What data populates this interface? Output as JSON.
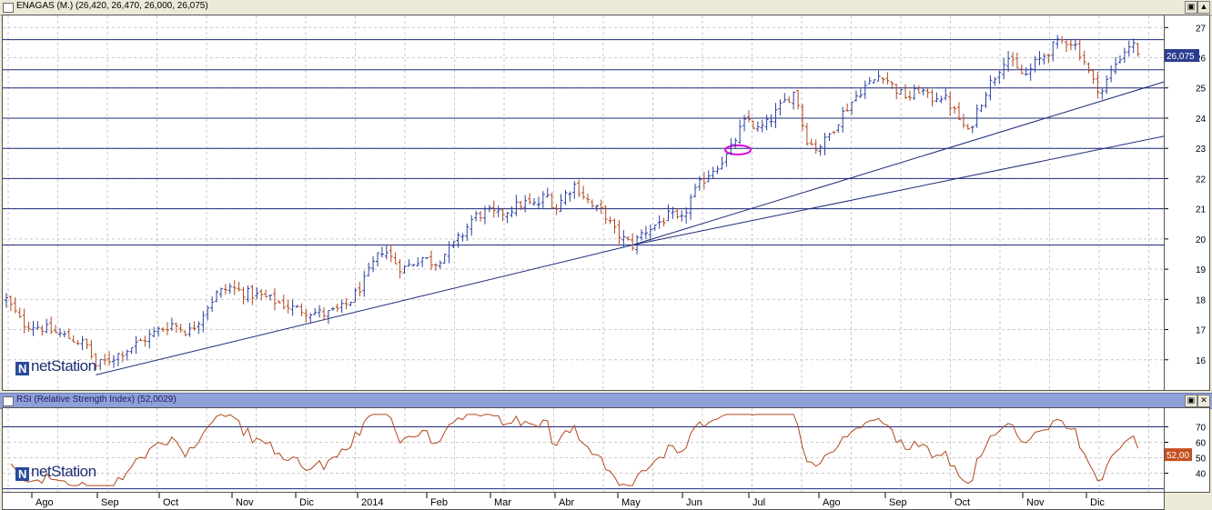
{
  "window": {
    "price_title": "ENAGAS (M.) (26,420, 26,470, 26,000, 26,075)",
    "rsi_title": "RSI (Relative Strength Index) (52,0029)",
    "restore_icon": "restore-icon",
    "maximize_icon": "maximize-icon"
  },
  "logo": {
    "text": "netStation"
  },
  "colors": {
    "bar_up": "#2b3f9e",
    "bar_down": "#b0461c",
    "rsi_line": "#b0461c",
    "trend_line": "#1c2a7a",
    "ellipse": "#e000e0",
    "last_price_badge": "#2b3d8f",
    "rsi_badge": "#c5501f"
  },
  "chart_data": [
    {
      "type": "ohlc",
      "series_name": "ENAGAS (M.)",
      "last_price_label": "26,075",
      "ylim": [
        15,
        27.4
      ],
      "yticks": [
        "16",
        "17",
        "18",
        "19",
        "20",
        "21",
        "22",
        "23",
        "24",
        "25",
        "26",
        "27"
      ],
      "horizontal_levels": [
        19.8,
        21,
        22,
        23,
        24,
        25,
        25.6,
        26.6
      ],
      "grid": true,
      "x_months": [
        "Ago",
        "Sep",
        "Oct",
        "Nov",
        "Dic",
        "2014",
        "Feb",
        "Mar",
        "Abr",
        "May",
        "Jun",
        "Jul",
        "Ago",
        "Sep",
        "Oct",
        "Nov",
        "Dic"
      ],
      "close_path_keypoints": [
        [
          0,
          18.0
        ],
        [
          5,
          17.2
        ],
        [
          10,
          17.1
        ],
        [
          18,
          16.8
        ],
        [
          25,
          16.5
        ],
        [
          28,
          15.8
        ],
        [
          32,
          16.0
        ],
        [
          37,
          16.3
        ],
        [
          42,
          16.6
        ],
        [
          48,
          17.0
        ],
        [
          52,
          17.2
        ],
        [
          57,
          16.9
        ],
        [
          60,
          17.3
        ],
        [
          63,
          17.8
        ],
        [
          66,
          18.2
        ],
        [
          70,
          18.4
        ],
        [
          75,
          18.2
        ],
        [
          80,
          18.1
        ],
        [
          85,
          17.9
        ],
        [
          90,
          17.7
        ],
        [
          95,
          17.6
        ],
        [
          100,
          17.5
        ],
        [
          105,
          17.7
        ],
        [
          108,
          18.0
        ],
        [
          112,
          18.6
        ],
        [
          115,
          19.2
        ],
        [
          118,
          19.7
        ],
        [
          121,
          19.3
        ],
        [
          124,
          19.0
        ],
        [
          127,
          19.2
        ],
        [
          130,
          19.4
        ],
        [
          134,
          19.2
        ],
        [
          137,
          19.5
        ],
        [
          140,
          19.8
        ],
        [
          143,
          20.2
        ],
        [
          146,
          20.7
        ],
        [
          150,
          20.9
        ],
        [
          154,
          20.8
        ],
        [
          158,
          21.0
        ],
        [
          162,
          21.2
        ],
        [
          166,
          21.1
        ],
        [
          169,
          21.5
        ],
        [
          172,
          21.0
        ],
        [
          175,
          21.5
        ],
        [
          178,
          21.8
        ],
        [
          181,
          21.4
        ],
        [
          184,
          21.0
        ],
        [
          187,
          20.9
        ],
        [
          190,
          20.3
        ],
        [
          193,
          20.0
        ],
        [
          196,
          19.8
        ],
        [
          199,
          20.2
        ],
        [
          202,
          20.4
        ],
        [
          205,
          20.6
        ],
        [
          208,
          20.8
        ],
        [
          211,
          20.5
        ],
        [
          214,
          21.3
        ],
        [
          217,
          21.8
        ],
        [
          220,
          22.2
        ],
        [
          223,
          22.5
        ],
        [
          226,
          22.8
        ],
        [
          229,
          23.5
        ],
        [
          232,
          24.0
        ],
        [
          235,
          23.6
        ],
        [
          238,
          23.8
        ],
        [
          241,
          24.2
        ],
        [
          244,
          24.6
        ],
        [
          247,
          24.9
        ],
        [
          250,
          23.4
        ],
        [
          253,
          23.0
        ],
        [
          256,
          23.2
        ],
        [
          259,
          23.7
        ],
        [
          262,
          24.2
        ],
        [
          265,
          24.6
        ],
        [
          268,
          25.0
        ],
        [
          271,
          25.2
        ],
        [
          274,
          25.5
        ],
        [
          277,
          25.1
        ],
        [
          280,
          24.8
        ],
        [
          283,
          24.7
        ],
        [
          286,
          25.0
        ],
        [
          289,
          24.6
        ],
        [
          292,
          24.8
        ],
        [
          295,
          24.5
        ],
        [
          298,
          24.0
        ],
        [
          301,
          23.5
        ],
        [
          304,
          24.3
        ],
        [
          307,
          25.0
        ],
        [
          310,
          25.5
        ],
        [
          313,
          26.1
        ],
        [
          316,
          25.6
        ],
        [
          319,
          25.4
        ],
        [
          322,
          25.8
        ],
        [
          325,
          26.1
        ],
        [
          328,
          26.4
        ],
        [
          331,
          26.6
        ],
        [
          334,
          26.5
        ],
        [
          337,
          26.0
        ],
        [
          340,
          25.2
        ],
        [
          343,
          24.9
        ],
        [
          346,
          25.6
        ],
        [
          349,
          26.1
        ],
        [
          352,
          26.5
        ],
        [
          355,
          26.1
        ]
      ]
    },
    {
      "type": "line",
      "series_name": "RSI (Relative Strength Index)",
      "last_value_label": "52,00",
      "ylim": [
        28,
        82
      ],
      "yticks": [
        "40",
        "50",
        "60",
        "70"
      ],
      "horizontal_levels": [
        30,
        70
      ],
      "grid": true
    }
  ]
}
